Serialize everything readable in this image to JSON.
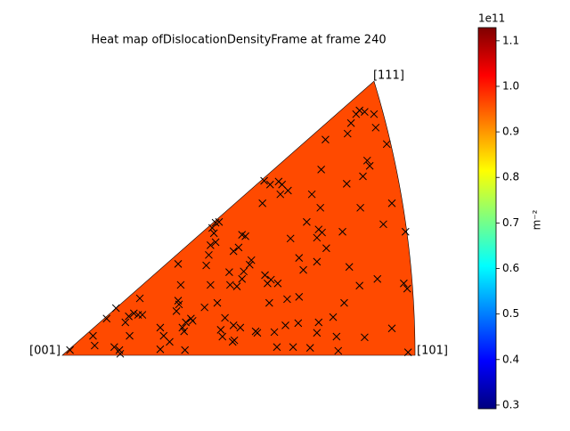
{
  "chart_data": {
    "type": "heatmap",
    "title": "Heat map ofDislocationDensityFrame at frame 240",
    "vertex_labels": [
      "[001]",
      "[101]",
      "[111]"
    ],
    "fill_color": "#ff4a00",
    "marker_color": "#000000",
    "xlim": [
      0,
      0.4142
    ],
    "ylim": [
      0,
      0.3662
    ],
    "points": {
      "x": [
        0.009,
        0.036,
        0.038,
        0.052,
        0.063,
        0.061,
        0.067,
        0.068,
        0.079,
        0.074,
        0.078,
        0.084,
        0.091,
        0.089,
        0.094,
        0.115,
        0.119,
        0.115,
        0.126,
        0.134,
        0.137,
        0.136,
        0.139,
        0.136,
        0.143,
        0.141,
        0.145,
        0.151,
        0.153,
        0.144,
        0.167,
        0.169,
        0.172,
        0.174,
        0.18,
        0.178,
        0.18,
        0.184,
        0.174,
        0.176,
        0.182,
        0.186,
        0.188,
        0.191,
        0.196,
        0.197,
        0.2,
        0.201,
        0.202,
        0.205,
        0.209,
        0.201,
        0.207,
        0.211,
        0.215,
        0.22,
        0.213,
        0.211,
        0.222,
        0.227,
        0.229,
        0.238,
        0.241,
        0.245,
        0.253,
        0.243,
        0.235,
        0.237,
        0.244,
        0.254,
        0.256,
        0.258,
        0.265,
        0.268,
        0.278,
        0.278,
        0.287,
        0.293,
        0.301,
        0.299,
        0.303,
        0.305,
        0.31,
        0.299,
        0.283,
        0.264,
        0.262,
        0.252,
        0.271,
        0.277,
        0.301,
        0.299,
        0.291,
        0.322,
        0.318,
        0.324,
        0.331,
        0.329,
        0.337,
        0.355,
        0.349,
        0.334,
        0.304,
        0.309,
        0.335,
        0.339,
        0.345,
        0.349,
        0.355,
        0.366,
        0.368,
        0.381,
        0.358,
        0.353,
        0.361,
        0.387,
        0.377,
        0.35,
        0.403,
        0.401,
        0.405,
        0.37,
        0.387,
        0.406,
        0.249
      ],
      "y": [
        0.007,
        0.026,
        0.013,
        0.049,
        0.063,
        0.011,
        0.007,
        0.002,
        0.026,
        0.044,
        0.052,
        0.056,
        0.076,
        0.054,
        0.054,
        0.037,
        0.026,
        0.008,
        0.018,
        0.059,
        0.068,
        0.073,
        0.094,
        0.122,
        0.032,
        0.037,
        0.044,
        0.049,
        0.046,
        0.007,
        0.064,
        0.12,
        0.134,
        0.147,
        0.151,
        0.163,
        0.177,
        0.178,
        0.094,
        0.17,
        0.07,
        0.034,
        0.025,
        0.05,
        0.111,
        0.094,
        0.018,
        0.04,
        0.02,
        0.092,
        0.037,
        0.139,
        0.144,
        0.161,
        0.159,
        0.121,
        0.112,
        0.102,
        0.127,
        0.032,
        0.03,
        0.107,
        0.096,
        0.101,
        0.096,
        0.07,
        0.203,
        0.233,
        0.228,
        0.232,
        0.215,
        0.228,
        0.22,
        0.156,
        0.13,
        0.078,
        0.178,
        0.215,
        0.168,
        0.157,
        0.197,
        0.164,
        0.143,
        0.125,
        0.114,
        0.075,
        0.04,
        0.011,
        0.011,
        0.043,
        0.044,
        0.03,
        0.01,
        0.025,
        0.051,
        0.006,
        0.07,
        0.165,
        0.118,
        0.024,
        0.093,
        0.229,
        0.248,
        0.288,
        0.296,
        0.31,
        0.322,
        0.327,
        0.325,
        0.322,
        0.304,
        0.282,
        0.26,
        0.239,
        0.253,
        0.203,
        0.175,
        0.197,
        0.165,
        0.096,
        0.089,
        0.102,
        0.036,
        0.004,
        0.031
      ]
    },
    "colorbar": {
      "colormap": [
        "#00007f",
        "#0000ff",
        "#007fff",
        "#00ffff",
        "#7fff7f",
        "#ffff00",
        "#ff7f00",
        "#ff0000",
        "#7f0000"
      ],
      "clim": [
        0.292,
        1.129
      ],
      "ticks": [
        0.3,
        0.4,
        0.5,
        0.6,
        0.7,
        0.8,
        0.9,
        {
          "value": 1,
          "label": "1.0"
        },
        1.1
      ],
      "offset_label": "1e11",
      "label": "m⁻²"
    }
  }
}
